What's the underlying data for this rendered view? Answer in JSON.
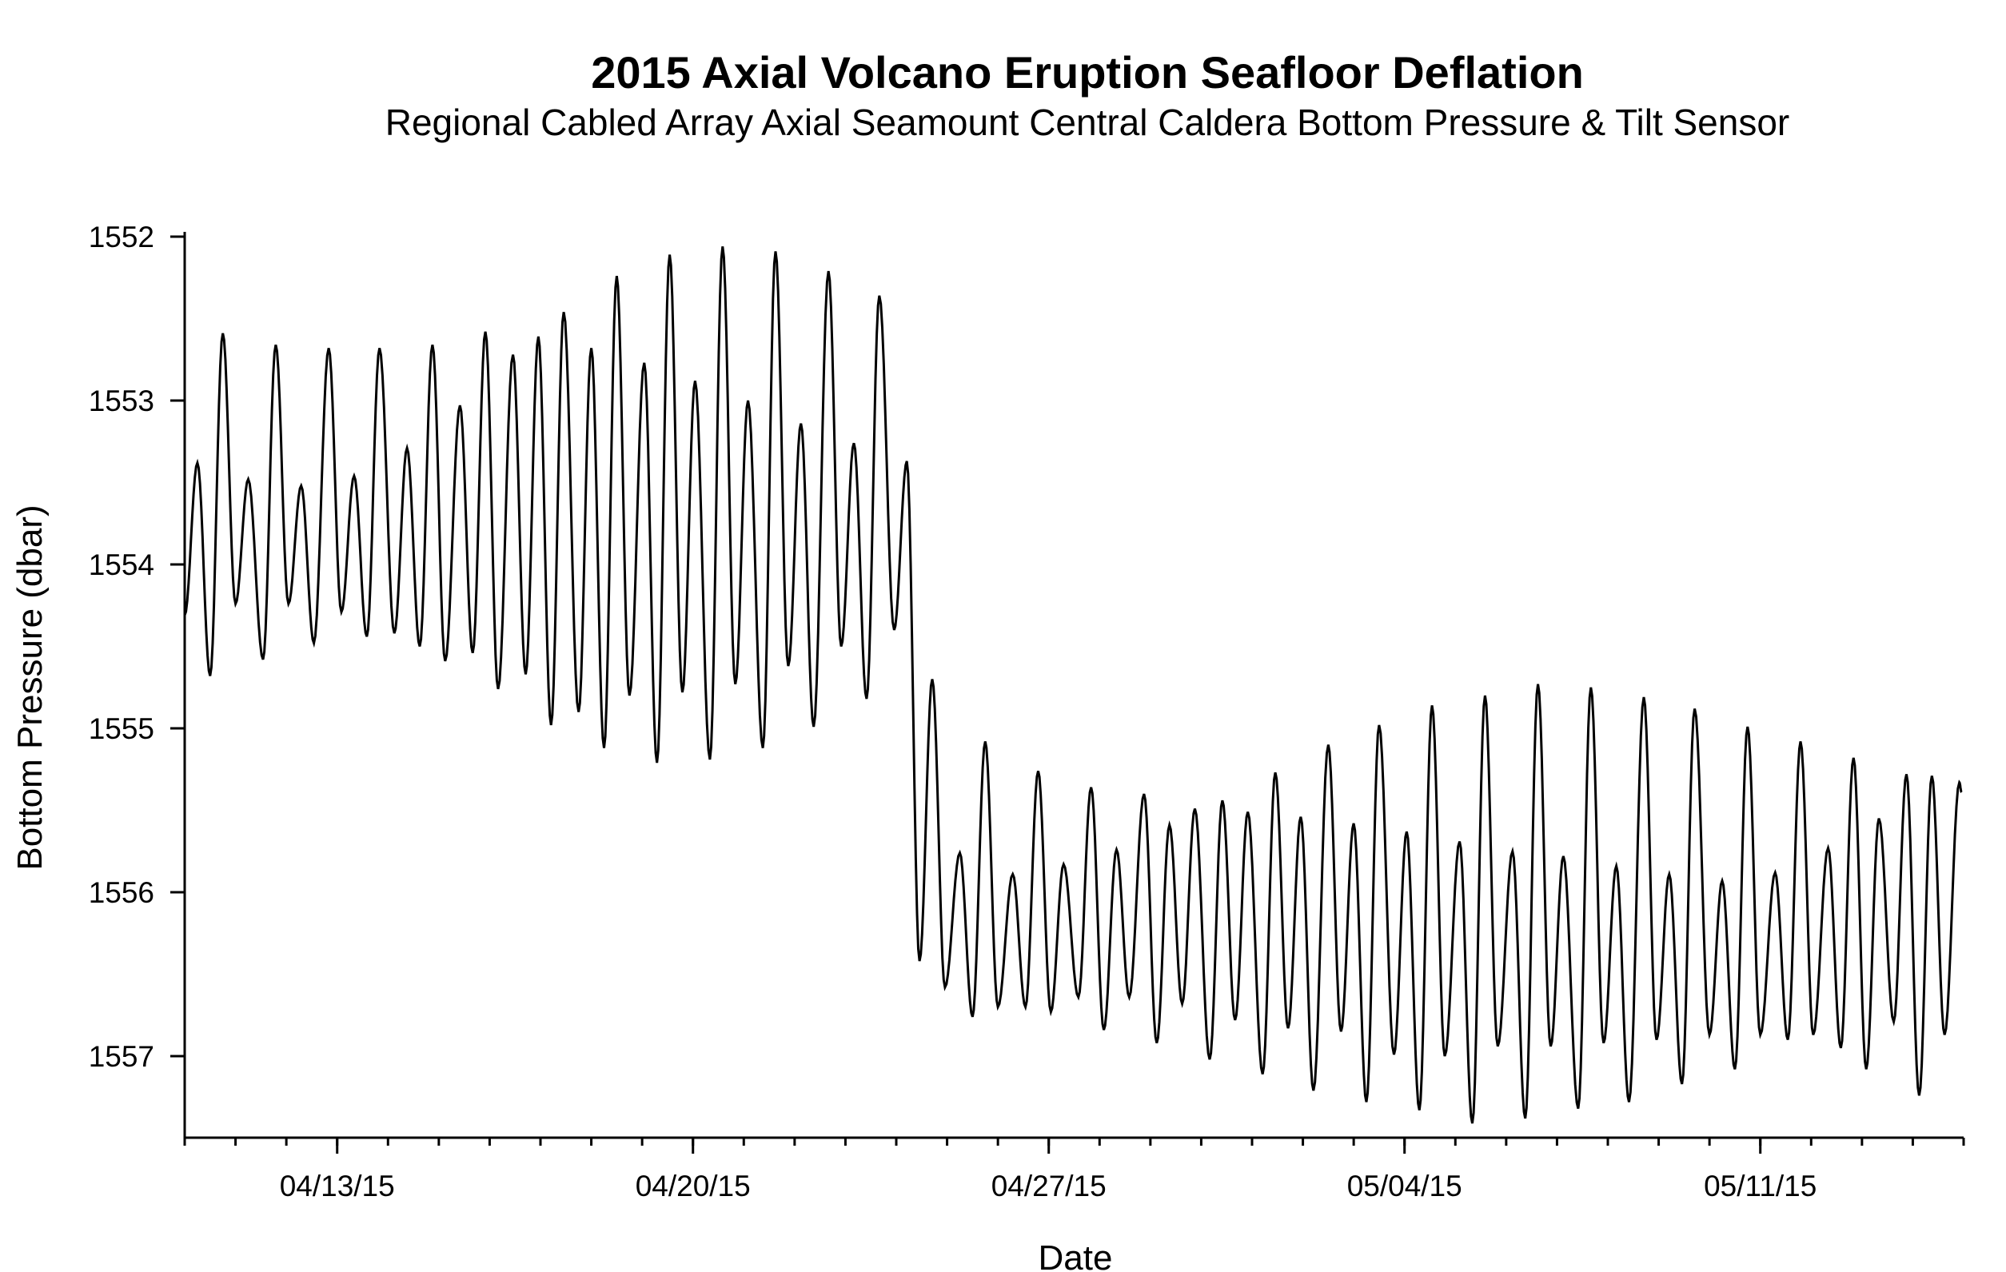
{
  "chart_data": {
    "type": "line",
    "title": "2015 Axial Volcano Eruption Seafloor Deflation",
    "subtitle": "Regional Cabled Array Axial Seamount Central Caldera Bottom Pressure & Tilt Sensor",
    "xlabel": "Date",
    "ylabel": "Bottom Pressure (dbar)",
    "xlim": [
      "2015-04-10T00:00",
      "2015-05-15T00:00"
    ],
    "ylim": [
      1552,
      1557.5
    ],
    "y_inverted": true,
    "grid": false,
    "line_color": "#000000",
    "x_tick_labels": [
      {
        "date": "2015-04-13",
        "label": "04/13/15"
      },
      {
        "date": "2015-04-20",
        "label": "04/20/15"
      },
      {
        "date": "2015-04-27",
        "label": "04/27/15"
      },
      {
        "date": "2015-05-04",
        "label": "05/04/15"
      },
      {
        "date": "2015-05-11",
        "label": "05/11/15"
      }
    ],
    "x_minor_ticks": "daily",
    "y_ticks": [
      1552,
      1553,
      1554,
      1555,
      1556,
      1557
    ],
    "y_tick_labels": [
      "1552",
      "1553",
      "1554",
      "1555",
      "1556",
      "1557"
    ],
    "series": [
      {
        "x": [
          "2015-04-10T00:00",
          "2015-04-10T06:00",
          "2015-04-10T12:00",
          "2015-04-10T18:00",
          "2015-04-11T00:00",
          "2015-04-11T06:00",
          "2015-04-11T13:00",
          "2015-04-11T19:00",
          "2015-04-12T01:00",
          "2015-04-12T07:00",
          "2015-04-12T13:00",
          "2015-04-12T20:00",
          "2015-04-13T02:00",
          "2015-04-13T08:00",
          "2015-04-13T14:00",
          "2015-04-13T20:00",
          "2015-04-14T03:00",
          "2015-04-14T09:00",
          "2015-04-14T15:00",
          "2015-04-14T21:00",
          "2015-04-15T03:00",
          "2015-04-15T10:00",
          "2015-04-15T16:00",
          "2015-04-15T22:00",
          "2015-04-16T04:00",
          "2015-04-16T11:00",
          "2015-04-16T17:00",
          "2015-04-16T23:00",
          "2015-04-17T05:00",
          "2015-04-17T11:00",
          "2015-04-17T18:00",
          "2015-04-18T00:00",
          "2015-04-18T06:00",
          "2015-04-18T12:00",
          "2015-04-18T18:00",
          "2015-04-19T01:00",
          "2015-04-19T07:00",
          "2015-04-19T13:00",
          "2015-04-19T19:00",
          "2015-04-20T01:00",
          "2015-04-20T08:00",
          "2015-04-20T14:00",
          "2015-04-20T20:00",
          "2015-04-21T02:00",
          "2015-04-21T09:00",
          "2015-04-21T15:00",
          "2015-04-21T21:00",
          "2015-04-22T03:00",
          "2015-04-22T09:00",
          "2015-04-22T16:00",
          "2015-04-22T22:00",
          "2015-04-23T04:00",
          "2015-04-23T10:00",
          "2015-04-23T16:00",
          "2015-04-23T23:00",
          "2015-04-24T05:00",
          "2015-04-24T11:00",
          "2015-04-24T17:00",
          "2015-04-24T23:00",
          "2015-04-25T06:00",
          "2015-04-25T12:00",
          "2015-04-25T18:00",
          "2015-04-26T00:00",
          "2015-04-26T07:00",
          "2015-04-26T13:00",
          "2015-04-26T19:00",
          "2015-04-27T01:00",
          "2015-04-27T07:00",
          "2015-04-27T14:00",
          "2015-04-27T20:00",
          "2015-04-28T02:00",
          "2015-04-28T08:00",
          "2015-04-28T14:00",
          "2015-04-28T21:00",
          "2015-04-29T03:00",
          "2015-04-29T09:00",
          "2015-04-29T15:00",
          "2015-04-29T21:00",
          "2015-04-30T04:00",
          "2015-04-30T10:00",
          "2015-04-30T16:00",
          "2015-04-30T22:00",
          "2015-05-01T05:00",
          "2015-05-01T11:00",
          "2015-05-01T17:00",
          "2015-05-01T23:00",
          "2015-05-02T05:00",
          "2015-05-02T12:00",
          "2015-05-02T18:00",
          "2015-05-03T00:00",
          "2015-05-03T06:00",
          "2015-05-03T12:00",
          "2015-05-03T19:00",
          "2015-05-04T01:00",
          "2015-05-04T07:00",
          "2015-05-04T13:00",
          "2015-05-04T19:00",
          "2015-05-05T02:00",
          "2015-05-05T08:00",
          "2015-05-05T14:00",
          "2015-05-05T20:00",
          "2015-05-06T03:00",
          "2015-05-06T09:00",
          "2015-05-06T15:00",
          "2015-05-06T21:00",
          "2015-05-07T03:00",
          "2015-05-07T10:00",
          "2015-05-07T16:00",
          "2015-05-07T22:00",
          "2015-05-08T04:00",
          "2015-05-08T10:00",
          "2015-05-08T17:00",
          "2015-05-08T23:00",
          "2015-05-09T05:00",
          "2015-05-09T11:00",
          "2015-05-09T17:00",
          "2015-05-10T00:00",
          "2015-05-10T06:00",
          "2015-05-10T12:00",
          "2015-05-10T18:00",
          "2015-05-11T00:00",
          "2015-05-11T07:00",
          "2015-05-11T13:00",
          "2015-05-11T19:00",
          "2015-05-12T01:00",
          "2015-05-12T08:00",
          "2015-05-12T14:00",
          "2015-05-12T20:00",
          "2015-05-13T02:00",
          "2015-05-13T08:00",
          "2015-05-13T15:00",
          "2015-05-13T21:00",
          "2015-05-14T03:00",
          "2015-05-14T09:00",
          "2015-05-14T15:00",
          "2015-05-14T22:00",
          "2015-05-14T23:00"
        ],
        "y": [
          1554.31,
          1553.38,
          1554.68,
          1552.59,
          1554.24,
          1553.48,
          1554.58,
          1552.66,
          1554.24,
          1553.52,
          1554.48,
          1552.68,
          1554.29,
          1553.46,
          1554.44,
          1552.68,
          1554.42,
          1553.29,
          1554.5,
          1552.66,
          1554.59,
          1553.03,
          1554.54,
          1552.58,
          1554.76,
          1552.72,
          1554.67,
          1552.61,
          1554.98,
          1552.46,
          1554.9,
          1552.68,
          1555.12,
          1552.24,
          1554.8,
          1552.77,
          1555.21,
          1552.11,
          1554.78,
          1552.88,
          1555.19,
          1552.06,
          1554.73,
          1553.0,
          1555.12,
          1552.09,
          1554.62,
          1553.14,
          1554.99,
          1552.21,
          1554.5,
          1553.26,
          1554.82,
          1552.36,
          1554.4,
          1553.37,
          1556.42,
          1554.7,
          1556.58,
          1555.76,
          1556.76,
          1555.08,
          1556.7,
          1555.89,
          1556.7,
          1555.26,
          1556.73,
          1555.83,
          1556.64,
          1555.36,
          1556.84,
          1555.74,
          1556.64,
          1555.4,
          1556.92,
          1555.59,
          1556.68,
          1555.49,
          1557.02,
          1555.44,
          1556.78,
          1555.51,
          1557.11,
          1555.27,
          1556.83,
          1555.54,
          1557.21,
          1555.1,
          1556.85,
          1555.58,
          1557.28,
          1554.98,
          1556.99,
          1555.63,
          1557.33,
          1554.86,
          1557.0,
          1555.69,
          1557.41,
          1554.8,
          1556.94,
          1555.75,
          1557.38,
          1554.73,
          1556.94,
          1555.78,
          1557.32,
          1554.75,
          1556.92,
          1555.84,
          1557.28,
          1554.81,
          1556.9,
          1555.89,
          1557.17,
          1554.88,
          1556.87,
          1555.93,
          1557.08,
          1554.99,
          1556.87,
          1555.88,
          1556.9,
          1555.08,
          1556.87,
          1555.73,
          1556.95,
          1555.18,
          1557.08,
          1555.55,
          1556.79,
          1555.28,
          1557.24,
          1555.29,
          1556.87,
          1555.33,
          1555.39
        ]
      }
    ]
  }
}
